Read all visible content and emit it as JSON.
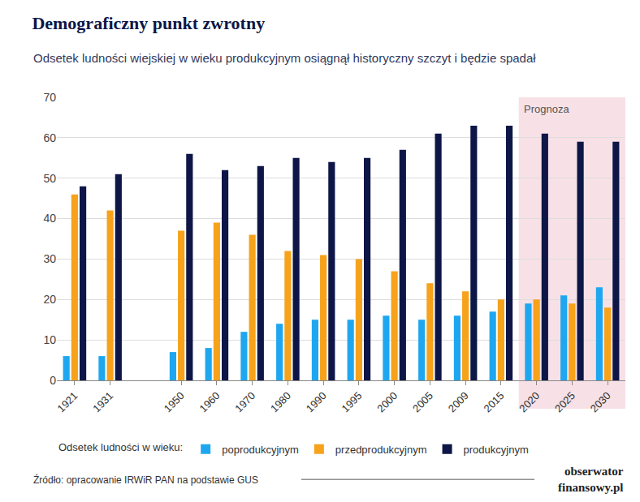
{
  "chart_data": {
    "type": "bar",
    "title": "Demograficzny punkt zwrotny",
    "subtitle": "Odsetek ludności wiejskiej w wieku produkcyjnym osiągnął historyczny szczyt i będzie spadał",
    "categories": [
      "1921",
      "1931",
      null,
      "1950",
      "1960",
      "1970",
      "1980",
      "1990",
      "1995",
      "2000",
      "2005",
      "2009",
      "2015",
      "2020",
      "2025",
      "2030"
    ],
    "series": [
      {
        "name": "poprodukcyjnym",
        "color": "#1ea7f0",
        "values": [
          6,
          6,
          null,
          7,
          8,
          12,
          14,
          15,
          15,
          16,
          15,
          16,
          17,
          19,
          21,
          23
        ]
      },
      {
        "name": "przedprodukcyjnym",
        "color": "#f7a21b",
        "values": [
          46,
          42,
          null,
          37,
          39,
          36,
          32,
          31,
          30,
          27,
          24,
          22,
          20,
          20,
          19,
          18
        ]
      },
      {
        "name": "produkcyjnym",
        "color": "#0d1647",
        "values": [
          48,
          51,
          null,
          56,
          52,
          53,
          55,
          54,
          55,
          57,
          61,
          63,
          63,
          61,
          59,
          59
        ]
      }
    ],
    "ylim": [
      0,
      70
    ],
    "yticks": [
      0,
      10,
      20,
      30,
      40,
      50,
      60,
      70
    ],
    "grid": true,
    "legend": "bottom",
    "legend_title": "Odsetek ludności w wieku:",
    "annotations": [
      {
        "text": "Prognoza",
        "from": "2020",
        "to": "2030"
      }
    ],
    "source": "Źródło: opracowanie IRWiR PAN na podstawie GUS",
    "logo": [
      "obserwator",
      "finansowy.pl"
    ]
  }
}
